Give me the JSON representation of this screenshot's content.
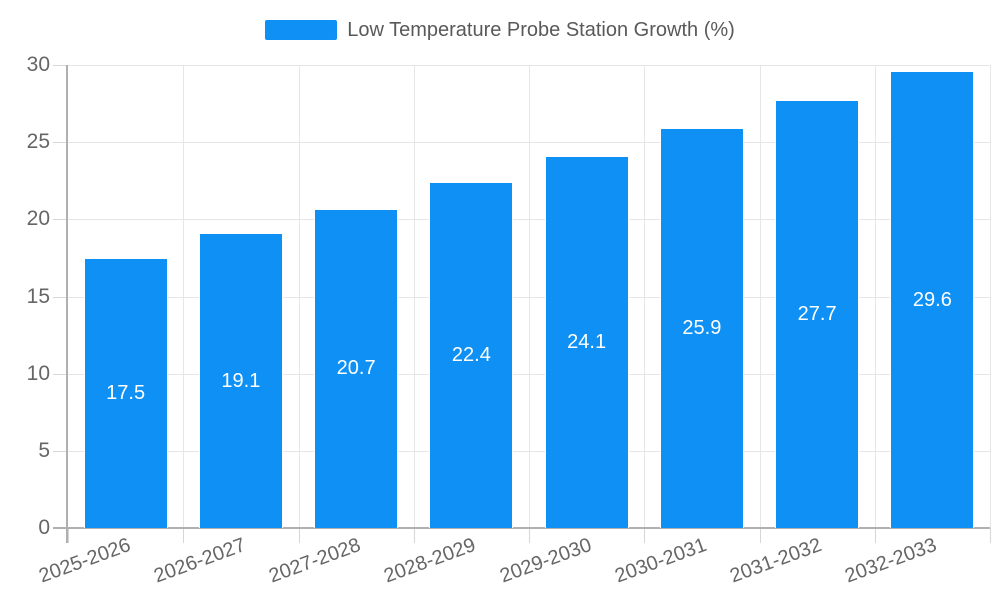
{
  "chart_data": {
    "type": "bar",
    "title": "",
    "legend": "Low Temperature Probe Station Growth (%)",
    "legend_position": "top",
    "categories": [
      "2025-2026",
      "2026-2027",
      "2027-2028",
      "2028-2029",
      "2029-2030",
      "2030-2031",
      "2031-2032",
      "2032-2033"
    ],
    "values": [
      17.5,
      19.1,
      20.7,
      22.4,
      24.1,
      25.9,
      27.7,
      29.6
    ],
    "ylabel": "",
    "xlabel": "",
    "ylim": [
      0,
      30
    ],
    "yticks": [
      0,
      5,
      10,
      15,
      20,
      25,
      30
    ],
    "grid": true,
    "x_label_rotation_deg": -20,
    "colors": {
      "bar": "#0e90f5",
      "bar_border": "#ffffff",
      "value_label": "#ffffff",
      "axis_text": "#666666",
      "legend_text": "#595959",
      "gridline": "#e6e6e6",
      "axis_line": "#b0b0b0"
    }
  }
}
